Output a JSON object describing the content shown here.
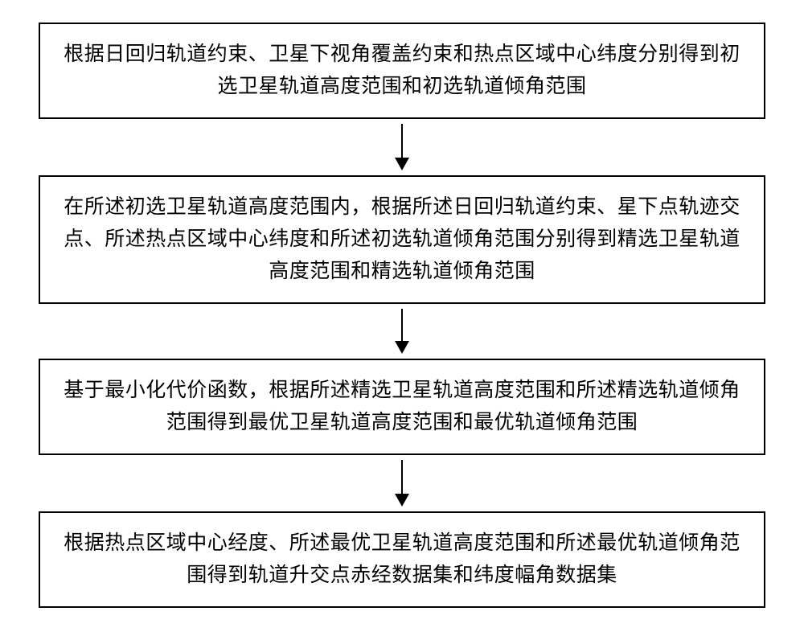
{
  "flowchart": {
    "type": "flowchart",
    "direction": "vertical",
    "background_color": "#ffffff",
    "box_border_color": "#000000",
    "box_border_width": 2,
    "text_color": "#000000",
    "text_fontsize": 25,
    "arrow_color": "#000000",
    "arrow_line_width": 2,
    "arrow_head_width": 18,
    "arrow_head_height": 16,
    "nodes": [
      {
        "id": "step1",
        "text": "根据日回归轨道约束、卫星下视角覆盖约束和热点区域中心纬度分别得到初选卫星轨道高度范围和初选轨道倾角范围",
        "arrow_line_height": 42
      },
      {
        "id": "step2",
        "text": "在所述初选卫星轨道高度范围内，根据所述日回归轨道约束、星下点轨迹交点、所述热点区域中心纬度和所述初选轨道倾角范围分别得到精选卫星轨道高度范围和精选轨道倾角范围",
        "arrow_line_height": 40
      },
      {
        "id": "step3",
        "text": "基于最小化代价函数，根据所述精选卫星轨道高度范围和所述精选轨道倾角范围得到最优卫星轨道高度范围和最优轨道倾角范围",
        "arrow_line_height": 42
      },
      {
        "id": "step4",
        "text": "根据热点区域中心经度、所述最优卫星轨道高度范围和所述最优轨道倾角范围得到轨道升交点赤经数据集和纬度幅角数据集",
        "arrow_line_height": 0
      }
    ]
  }
}
